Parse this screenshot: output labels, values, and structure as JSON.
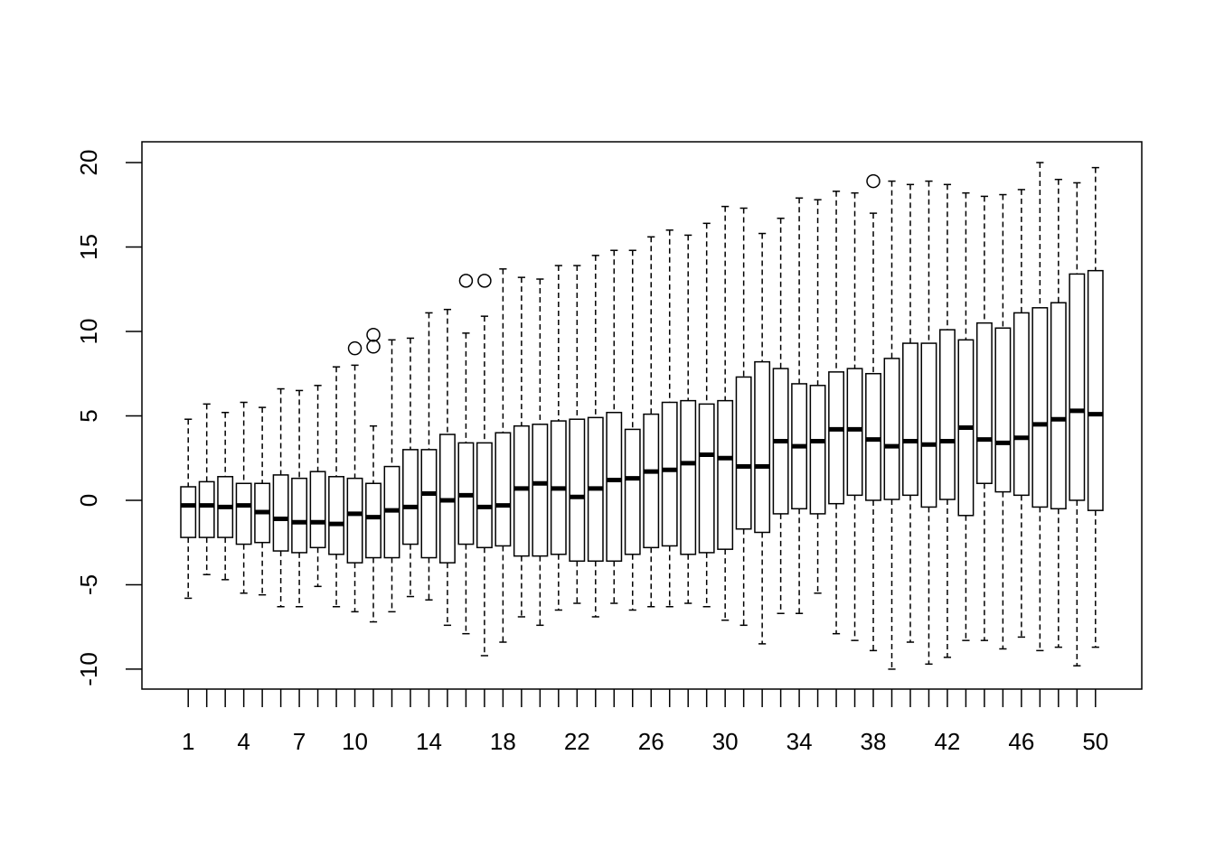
{
  "chart_data": {
    "type": "boxplot",
    "categories": [
      "1",
      null,
      null,
      "4",
      null,
      null,
      "7",
      null,
      null,
      "10",
      null,
      null,
      null,
      "14",
      null,
      null,
      null,
      "18",
      null,
      null,
      null,
      "22",
      null,
      null,
      null,
      "26",
      null,
      null,
      null,
      "30",
      null,
      null,
      null,
      "34",
      null,
      null,
      null,
      "38",
      null,
      null,
      null,
      "42",
      null,
      null,
      null,
      "46",
      null,
      null,
      null,
      "50"
    ],
    "boxes": [
      {
        "low": -5.8,
        "q1": -2.2,
        "median": -0.3,
        "q3": 0.8,
        "high": 4.8,
        "outliers": []
      },
      {
        "low": -4.4,
        "q1": -2.2,
        "median": -0.3,
        "q3": 1.1,
        "high": 5.7,
        "outliers": []
      },
      {
        "low": -4.7,
        "q1": -2.2,
        "median": -0.4,
        "q3": 1.4,
        "high": 5.2,
        "outliers": []
      },
      {
        "low": -5.5,
        "q1": -2.6,
        "median": -0.3,
        "q3": 1.0,
        "high": 5.8,
        "outliers": []
      },
      {
        "low": -5.6,
        "q1": -2.5,
        "median": -0.7,
        "q3": 1.0,
        "high": 5.5,
        "outliers": []
      },
      {
        "low": -6.3,
        "q1": -3.0,
        "median": -1.1,
        "q3": 1.5,
        "high": 6.6,
        "outliers": []
      },
      {
        "low": -6.3,
        "q1": -3.1,
        "median": -1.3,
        "q3": 1.3,
        "high": 6.5,
        "outliers": []
      },
      {
        "low": -5.1,
        "q1": -2.8,
        "median": -1.3,
        "q3": 1.7,
        "high": 6.8,
        "outliers": []
      },
      {
        "low": -6.3,
        "q1": -3.2,
        "median": -1.4,
        "q3": 1.4,
        "high": 7.9,
        "outliers": []
      },
      {
        "low": -6.6,
        "q1": -3.7,
        "median": -0.8,
        "q3": 1.3,
        "high": 8.0,
        "outliers": [
          9.0
        ]
      },
      {
        "low": -7.2,
        "q1": -3.4,
        "median": -1.0,
        "q3": 1.0,
        "high": 4.4,
        "outliers": [
          9.8,
          9.1
        ]
      },
      {
        "low": -6.6,
        "q1": -3.4,
        "median": -0.6,
        "q3": 2.0,
        "high": 9.5,
        "outliers": []
      },
      {
        "low": -5.7,
        "q1": -2.6,
        "median": -0.4,
        "q3": 3.0,
        "high": 9.6,
        "outliers": []
      },
      {
        "low": -5.9,
        "q1": -3.4,
        "median": 0.4,
        "q3": 3.0,
        "high": 11.1,
        "outliers": []
      },
      {
        "low": -7.4,
        "q1": -3.7,
        "median": 0.0,
        "q3": 3.9,
        "high": 11.3,
        "outliers": []
      },
      {
        "low": -7.9,
        "q1": -2.6,
        "median": 0.3,
        "q3": 3.4,
        "high": 9.9,
        "outliers": [
          13.0
        ]
      },
      {
        "low": -9.2,
        "q1": -2.8,
        "median": -0.4,
        "q3": 3.4,
        "high": 10.9,
        "outliers": [
          13.0
        ]
      },
      {
        "low": -8.4,
        "q1": -2.7,
        "median": -0.3,
        "q3": 4.0,
        "high": 13.7,
        "outliers": []
      },
      {
        "low": -6.9,
        "q1": -3.3,
        "median": 0.7,
        "q3": 4.4,
        "high": 13.2,
        "outliers": []
      },
      {
        "low": -7.4,
        "q1": -3.3,
        "median": 1.0,
        "q3": 4.5,
        "high": 13.1,
        "outliers": []
      },
      {
        "low": -6.5,
        "q1": -3.2,
        "median": 0.7,
        "q3": 4.7,
        "high": 13.9,
        "outliers": []
      },
      {
        "low": -6.1,
        "q1": -3.6,
        "median": 0.2,
        "q3": 4.8,
        "high": 13.9,
        "outliers": []
      },
      {
        "low": -6.9,
        "q1": -3.6,
        "median": 0.7,
        "q3": 4.9,
        "high": 14.5,
        "outliers": []
      },
      {
        "low": -6.1,
        "q1": -3.6,
        "median": 1.2,
        "q3": 5.2,
        "high": 14.8,
        "outliers": []
      },
      {
        "low": -6.5,
        "q1": -3.2,
        "median": 1.3,
        "q3": 4.2,
        "high": 14.8,
        "outliers": []
      },
      {
        "low": -6.3,
        "q1": -2.8,
        "median": 1.7,
        "q3": 5.1,
        "high": 15.6,
        "outliers": []
      },
      {
        "low": -6.3,
        "q1": -2.7,
        "median": 1.8,
        "q3": 5.8,
        "high": 16.0,
        "outliers": []
      },
      {
        "low": -6.1,
        "q1": -3.2,
        "median": 2.2,
        "q3": 5.9,
        "high": 15.7,
        "outliers": []
      },
      {
        "low": -6.3,
        "q1": -3.1,
        "median": 2.7,
        "q3": 5.7,
        "high": 16.4,
        "outliers": []
      },
      {
        "low": -7.1,
        "q1": -2.9,
        "median": 2.5,
        "q3": 5.9,
        "high": 17.4,
        "outliers": []
      },
      {
        "low": -7.4,
        "q1": -1.7,
        "median": 2.0,
        "q3": 7.3,
        "high": 17.3,
        "outliers": []
      },
      {
        "low": -8.5,
        "q1": -1.9,
        "median": 2.0,
        "q3": 8.2,
        "high": 15.8,
        "outliers": []
      },
      {
        "low": -6.7,
        "q1": -0.8,
        "median": 3.5,
        "q3": 7.8,
        "high": 16.7,
        "outliers": []
      },
      {
        "low": -6.7,
        "q1": -0.5,
        "median": 3.2,
        "q3": 6.9,
        "high": 17.9,
        "outliers": []
      },
      {
        "low": -5.5,
        "q1": -0.8,
        "median": 3.5,
        "q3": 6.8,
        "high": 17.8,
        "outliers": []
      },
      {
        "low": -7.9,
        "q1": -0.2,
        "median": 4.2,
        "q3": 7.6,
        "high": 18.3,
        "outliers": []
      },
      {
        "low": -8.3,
        "q1": 0.3,
        "median": 4.2,
        "q3": 7.8,
        "high": 18.2,
        "outliers": []
      },
      {
        "low": -8.9,
        "q1": 0.0,
        "median": 3.6,
        "q3": 7.5,
        "high": 17.0,
        "outliers": [
          18.9
        ]
      },
      {
        "low": -10.0,
        "q1": 0.05,
        "median": 3.2,
        "q3": 8.4,
        "high": 18.9,
        "outliers": []
      },
      {
        "low": -8.4,
        "q1": 0.3,
        "median": 3.5,
        "q3": 9.3,
        "high": 18.7,
        "outliers": []
      },
      {
        "low": -9.7,
        "q1": -0.4,
        "median": 3.3,
        "q3": 9.3,
        "high": 18.9,
        "outliers": []
      },
      {
        "low": -9.3,
        "q1": 0.05,
        "median": 3.5,
        "q3": 10.1,
        "high": 18.7,
        "outliers": []
      },
      {
        "low": -8.3,
        "q1": -0.9,
        "median": 4.3,
        "q3": 9.5,
        "high": 18.2,
        "outliers": []
      },
      {
        "low": -8.3,
        "q1": 1.0,
        "median": 3.6,
        "q3": 10.5,
        "high": 18.0,
        "outliers": []
      },
      {
        "low": -8.8,
        "q1": 0.5,
        "median": 3.4,
        "q3": 10.2,
        "high": 18.1,
        "outliers": []
      },
      {
        "low": -8.1,
        "q1": 0.3,
        "median": 3.7,
        "q3": 11.1,
        "high": 18.4,
        "outliers": []
      },
      {
        "low": -8.9,
        "q1": -0.4,
        "median": 4.5,
        "q3": 11.4,
        "high": 20.0,
        "outliers": []
      },
      {
        "low": -8.7,
        "q1": -0.5,
        "median": 4.8,
        "q3": 11.7,
        "high": 19.0,
        "outliers": []
      },
      {
        "low": -9.8,
        "q1": 0.0,
        "median": 5.3,
        "q3": 13.4,
        "high": 18.8,
        "outliers": []
      },
      {
        "low": -8.7,
        "q1": -0.6,
        "median": 5.1,
        "q3": 13.6,
        "high": 19.7,
        "outliers": []
      }
    ],
    "xlim": [
      -1.5,
      52.5
    ],
    "ylim": [
      -11.18,
      21.23
    ],
    "yticks": [
      -10,
      -5,
      0,
      5,
      10,
      15,
      20
    ],
    "color": "#000000"
  }
}
